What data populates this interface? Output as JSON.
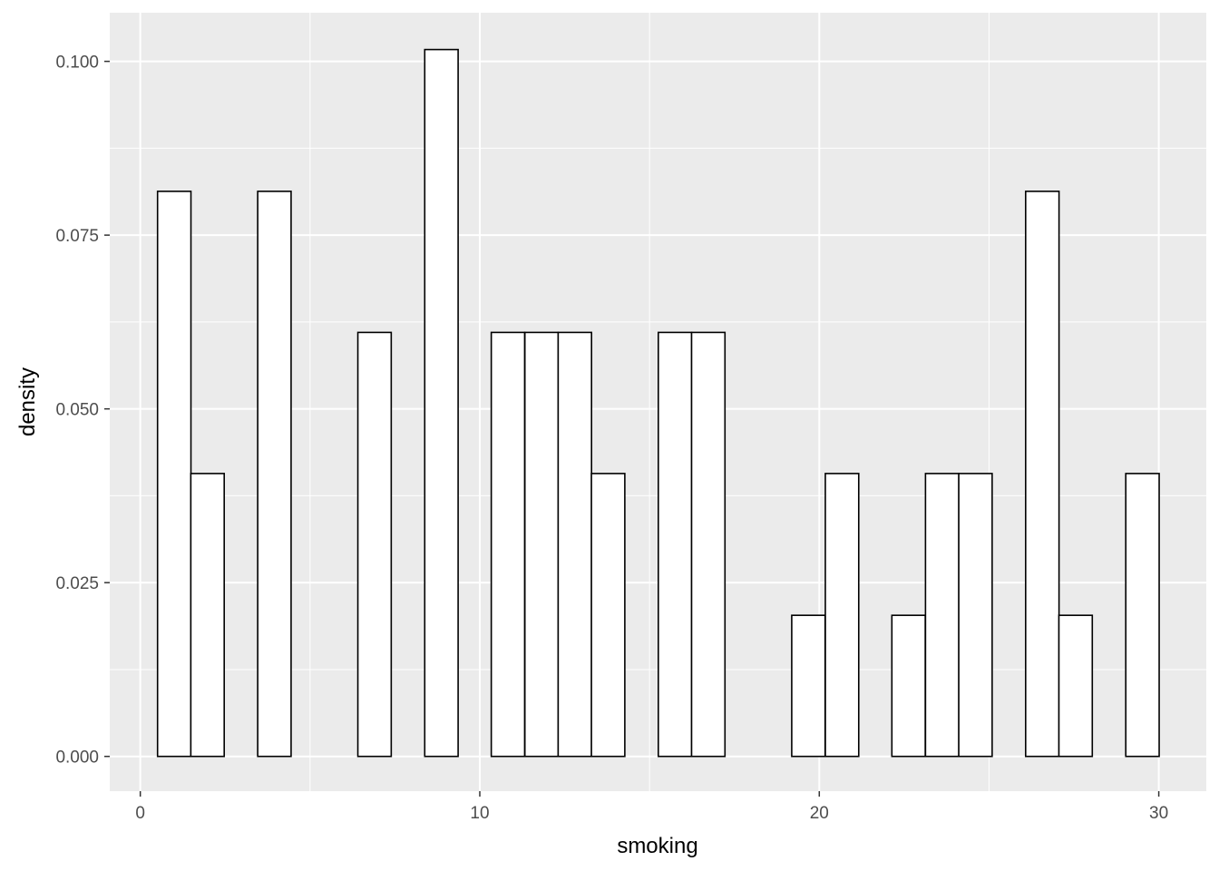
{
  "chart_data": {
    "type": "bar",
    "subtype": "histogram",
    "xlabel": "smoking",
    "ylabel": "density",
    "xlim": [
      -0.9,
      31.4
    ],
    "ylim": [
      -0.005,
      0.107
    ],
    "x_ticks": [
      0,
      10,
      20,
      30
    ],
    "x_tick_labels": [
      "0",
      "10",
      "20",
      "30"
    ],
    "y_ticks": [
      0,
      0.025,
      0.05,
      0.075,
      0.1
    ],
    "y_tick_labels": [
      "0.000",
      "0.025",
      "0.050",
      "0.075",
      "0.100"
    ],
    "bin_width": 0.9833,
    "bins": [
      {
        "x": 1.0,
        "density": 0.0813
      },
      {
        "x": 1.98,
        "density": 0.0407
      },
      {
        "x": 2.97,
        "density": 0
      },
      {
        "x": 3.95,
        "density": 0.0813
      },
      {
        "x": 4.93,
        "density": 0
      },
      {
        "x": 5.92,
        "density": 0
      },
      {
        "x": 6.9,
        "density": 0.061
      },
      {
        "x": 7.88,
        "density": 0
      },
      {
        "x": 8.87,
        "density": 0.1017
      },
      {
        "x": 9.85,
        "density": 0
      },
      {
        "x": 10.83,
        "density": 0.061
      },
      {
        "x": 11.82,
        "density": 0.061
      },
      {
        "x": 12.8,
        "density": 0.061
      },
      {
        "x": 13.78,
        "density": 0.0407
      },
      {
        "x": 14.77,
        "density": 0
      },
      {
        "x": 15.75,
        "density": 0.061
      },
      {
        "x": 16.73,
        "density": 0.061
      },
      {
        "x": 17.72,
        "density": 0
      },
      {
        "x": 18.7,
        "density": 0
      },
      {
        "x": 19.68,
        "density": 0.0203
      },
      {
        "x": 20.67,
        "density": 0.0407
      },
      {
        "x": 21.65,
        "density": 0
      },
      {
        "x": 22.63,
        "density": 0.0203
      },
      {
        "x": 23.62,
        "density": 0.0407
      },
      {
        "x": 24.6,
        "density": 0.0407
      },
      {
        "x": 25.58,
        "density": 0
      },
      {
        "x": 26.57,
        "density": 0.0813
      },
      {
        "x": 27.55,
        "density": 0.0203
      },
      {
        "x": 28.53,
        "density": 0
      },
      {
        "x": 29.52,
        "density": 0.0407
      }
    ],
    "bar_fill": "#ffffff",
    "bar_stroke": "#000000",
    "panel_background": "#ebebeb",
    "grid": true,
    "grid_color": "#ffffff",
    "legend": "none"
  }
}
